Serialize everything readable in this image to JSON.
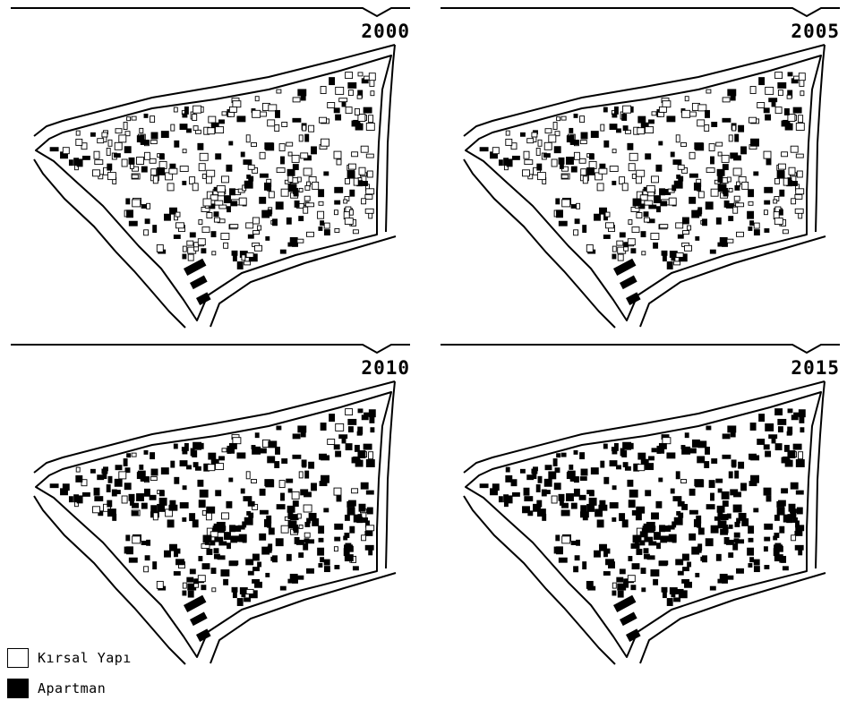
{
  "panels": [
    {
      "year": "2000",
      "apartman_share": 0.35
    },
    {
      "year": "2005",
      "apartman_share": 0.47
    },
    {
      "year": "2010",
      "apartman_share": 0.85
    },
    {
      "year": "2015",
      "apartman_share": 0.98
    }
  ],
  "legend": {
    "items": [
      {
        "label": "Kırsal Yapı",
        "fill": "#ffffff"
      },
      {
        "label": "Apartman",
        "fill": "#000000"
      }
    ]
  },
  "colors": {
    "line": "#000000",
    "background": "#ffffff"
  }
}
